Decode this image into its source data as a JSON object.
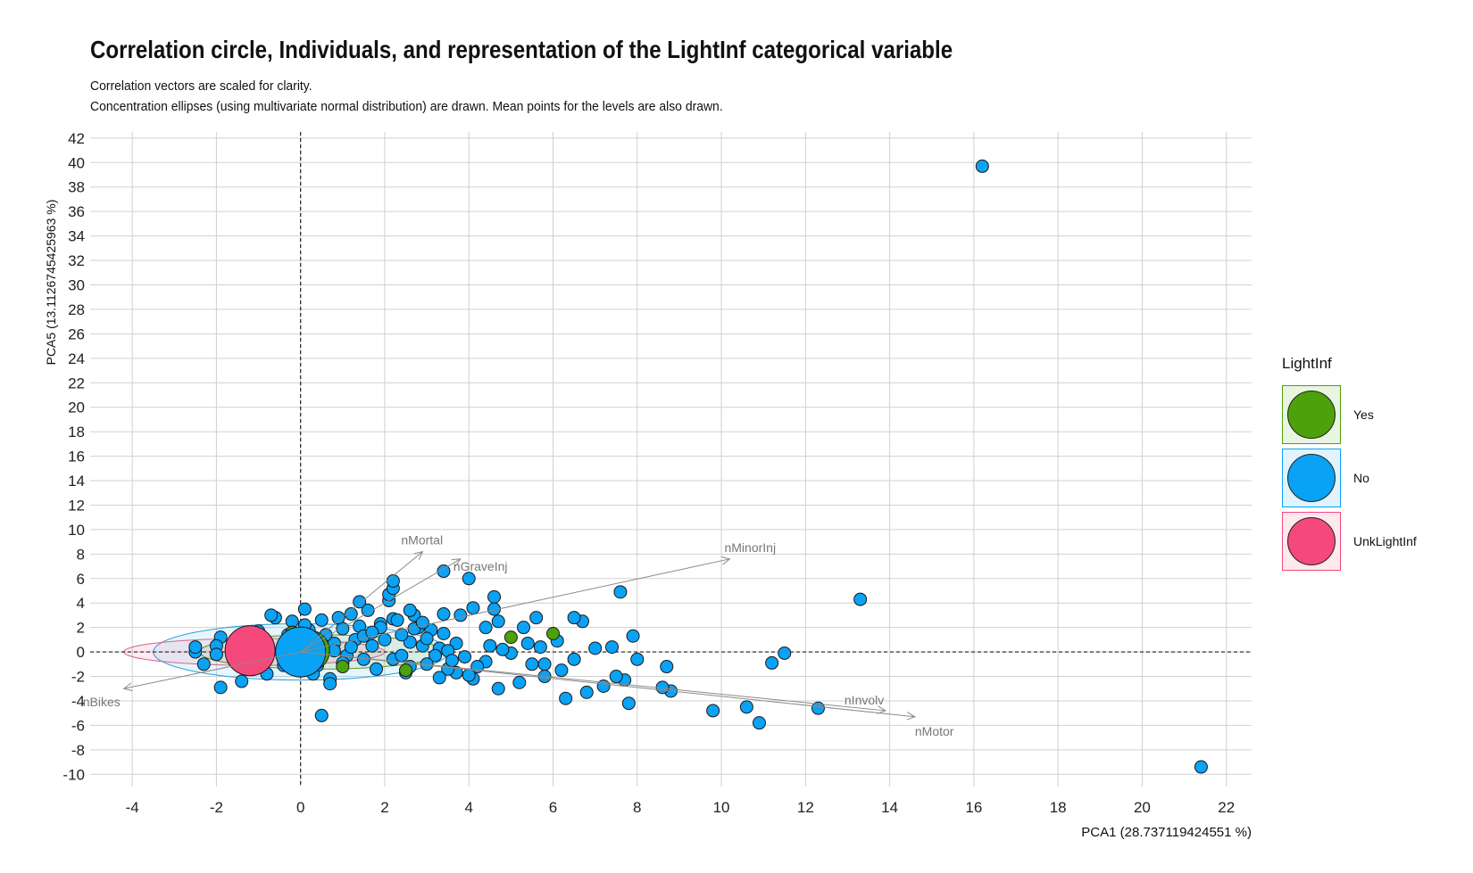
{
  "colors": {
    "yes": "#4da10a",
    "no": "#0aa2f5",
    "unk": "#f5497c",
    "grid": "#d0d0d0",
    "arrow": "#8a8a8a",
    "text": "#111111"
  },
  "chart_data": {
    "type": "scatter",
    "title": "Correlation circle, Individuals, and representation of the LightInf categorical variable",
    "subtitle": [
      "Correlation vectors are scaled for clarity.",
      "Concentration ellipses (using multivariate normal distribution) are drawn. Mean points for the levels are also drawn."
    ],
    "xlabel": "PCA1 (28.737119424551 %)",
    "ylabel": "PCA5 (13.1126745425963 %)",
    "xlim": [
      -5.0,
      22.6
    ],
    "ylim": [
      -11,
      42.5
    ],
    "xticks": [
      -4,
      -2,
      0,
      2,
      4,
      6,
      8,
      10,
      12,
      14,
      16,
      18,
      20,
      22
    ],
    "yticks": [
      -10,
      -8,
      -6,
      -4,
      -2,
      0,
      2,
      4,
      6,
      8,
      10,
      12,
      14,
      16,
      18,
      20,
      22,
      24,
      26,
      28,
      30,
      32,
      34,
      36,
      38,
      40,
      42
    ],
    "grid": true,
    "reference_lines": {
      "x": 0,
      "y": 0
    },
    "legend": {
      "title": "LightInf",
      "position": "right",
      "entries": [
        "Yes",
        "No",
        "UnkLightInf"
      ]
    },
    "vectors": [
      {
        "name": "nMortal",
        "x": 2.9,
        "y": 8.2
      },
      {
        "name": "nGraveInj",
        "x": 3.8,
        "y": 7.6
      },
      {
        "name": "nMinorInj",
        "x": 10.2,
        "y": 7.6
      },
      {
        "name": "nInvolv",
        "x": 13.9,
        "y": -4.8
      },
      {
        "name": "nMotor",
        "x": 14.6,
        "y": -5.3
      },
      {
        "name": "nBikes",
        "x": -4.2,
        "y": -3.0
      }
    ],
    "ellipses": [
      {
        "name": "No",
        "cx": 0.0,
        "cy": 0.0,
        "rx": 3.5,
        "ry": 2.3
      },
      {
        "name": "Yes",
        "cx": 0.5,
        "cy": 0.0,
        "rx": 2.9,
        "ry": 1.4
      },
      {
        "name": "UnkLightInf",
        "cx": -1.1,
        "cy": 0.0,
        "rx": 3.1,
        "ry": 1.1
      }
    ],
    "means": [
      {
        "name": "Yes",
        "x": 0.2,
        "y": 0.1
      },
      {
        "name": "UnkLightInf",
        "x": -1.2,
        "y": 0.1
      },
      {
        "name": "No",
        "x": 0.0,
        "y": 0.0
      }
    ],
    "series": [
      {
        "name": "No",
        "points": [
          [
            16.2,
            39.7
          ],
          [
            21.4,
            -9.4
          ],
          [
            13.3,
            4.3
          ],
          [
            11.5,
            -0.1
          ],
          [
            11.2,
            -0.9
          ],
          [
            12.3,
            -4.6
          ],
          [
            10.9,
            -5.8
          ],
          [
            10.6,
            -4.5
          ],
          [
            9.8,
            -4.8
          ],
          [
            8.8,
            -3.2
          ],
          [
            8.6,
            -2.9
          ],
          [
            8.7,
            -1.2
          ],
          [
            8.0,
            -0.6
          ],
          [
            7.9,
            1.3
          ],
          [
            7.8,
            -4.2
          ],
          [
            7.7,
            -2.3
          ],
          [
            7.6,
            4.9
          ],
          [
            7.5,
            -2.0
          ],
          [
            7.4,
            0.4
          ],
          [
            7.2,
            -2.8
          ],
          [
            7.0,
            0.3
          ],
          [
            6.8,
            -3.3
          ],
          [
            6.7,
            2.5
          ],
          [
            6.5,
            2.8
          ],
          [
            6.5,
            -0.6
          ],
          [
            6.3,
            -3.8
          ],
          [
            6.2,
            -1.5
          ],
          [
            6.1,
            0.9
          ],
          [
            5.8,
            -1.0
          ],
          [
            5.8,
            -2.0
          ],
          [
            5.6,
            2.8
          ],
          [
            5.7,
            0.4
          ],
          [
            5.5,
            -1.0
          ],
          [
            5.3,
            2.0
          ],
          [
            5.2,
            -2.5
          ],
          [
            5.4,
            0.7
          ],
          [
            5.0,
            -0.1
          ],
          [
            4.8,
            0.2
          ],
          [
            4.7,
            -3.0
          ],
          [
            4.6,
            4.5
          ],
          [
            4.6,
            3.5
          ],
          [
            4.7,
            2.5
          ],
          [
            4.4,
            2.0
          ],
          [
            4.5,
            0.5
          ],
          [
            4.4,
            -0.8
          ],
          [
            4.2,
            -1.2
          ],
          [
            4.1,
            -2.2
          ],
          [
            4.0,
            -1.9
          ],
          [
            4.1,
            3.6
          ],
          [
            4.0,
            6.0
          ],
          [
            3.8,
            3.0
          ],
          [
            3.9,
            -0.4
          ],
          [
            3.7,
            -1.7
          ],
          [
            3.7,
            0.7
          ],
          [
            3.5,
            -1.4
          ],
          [
            3.4,
            1.5
          ],
          [
            3.4,
            3.1
          ],
          [
            3.4,
            6.6
          ],
          [
            3.3,
            -2.1
          ],
          [
            3.3,
            0.3
          ],
          [
            3.2,
            -0.3
          ],
          [
            3.1,
            1.8
          ],
          [
            3.0,
            -1.0
          ],
          [
            2.9,
            0.5
          ],
          [
            2.8,
            2.0
          ],
          [
            2.7,
            3.0
          ],
          [
            2.6,
            0.8
          ],
          [
            2.5,
            -1.7
          ],
          [
            2.6,
            3.4
          ],
          [
            2.4,
            1.4
          ],
          [
            2.2,
            2.7
          ],
          [
            2.2,
            -0.6
          ],
          [
            2.1,
            4.2
          ],
          [
            2.1,
            4.7
          ],
          [
            2.2,
            5.2
          ],
          [
            2.2,
            5.8
          ],
          [
            2.0,
            1.0
          ],
          [
            1.9,
            2.3
          ],
          [
            1.8,
            -1.4
          ],
          [
            1.7,
            0.5
          ],
          [
            1.6,
            3.4
          ],
          [
            1.5,
            -0.6
          ],
          [
            1.4,
            4.1
          ],
          [
            1.4,
            2.1
          ],
          [
            1.3,
            1.0
          ],
          [
            1.2,
            3.1
          ],
          [
            1.1,
            -0.3
          ],
          [
            1.0,
            1.9
          ],
          [
            0.9,
            2.8
          ],
          [
            0.8,
            0.7
          ],
          [
            0.7,
            -2.2
          ],
          [
            0.7,
            -2.6
          ],
          [
            0.6,
            1.4
          ],
          [
            0.5,
            2.6
          ],
          [
            0.5,
            -5.2
          ],
          [
            0.4,
            -1.1
          ],
          [
            0.3,
            -1.8
          ],
          [
            0.2,
            1.8
          ],
          [
            0.1,
            3.5
          ],
          [
            0.1,
            2.2
          ],
          [
            -0.2,
            2.5
          ],
          [
            -0.4,
            -1.1
          ],
          [
            -0.6,
            2.8
          ],
          [
            -0.7,
            3.0
          ],
          [
            -0.8,
            -1.8
          ],
          [
            -1.0,
            1.7
          ],
          [
            -1.4,
            -2.4
          ],
          [
            -1.9,
            -2.9
          ],
          [
            -1.9,
            1.2
          ],
          [
            -2.0,
            0.5
          ],
          [
            -2.0,
            -0.2
          ],
          [
            -2.3,
            -1.0
          ],
          [
            -2.5,
            0.0
          ],
          [
            -2.5,
            0.4
          ],
          [
            1.5,
            1.3
          ],
          [
            1.9,
            2.0
          ],
          [
            2.3,
            2.6
          ],
          [
            2.7,
            1.9
          ],
          [
            3.0,
            1.1
          ],
          [
            3.5,
            0.1
          ],
          [
            1.0,
            -0.9
          ],
          [
            0.8,
            0.1
          ],
          [
            2.4,
            -0.3
          ],
          [
            1.2,
            0.4
          ],
          [
            0.4,
            0.9
          ],
          [
            -0.3,
            1.4
          ],
          [
            2.6,
            -1.2
          ],
          [
            3.6,
            -0.7
          ],
          [
            1.7,
            1.6
          ],
          [
            2.9,
            2.4
          ]
        ]
      },
      {
        "name": "Yes",
        "points": [
          [
            5.0,
            1.2
          ],
          [
            6.0,
            1.5
          ],
          [
            2.5,
            -1.5
          ],
          [
            1.0,
            -1.2
          ],
          [
            -0.2,
            1.6
          ]
        ]
      }
    ]
  }
}
